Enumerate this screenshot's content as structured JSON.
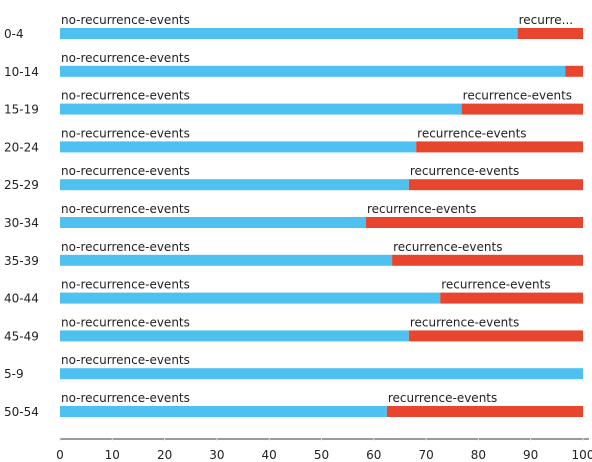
{
  "chart_data": {
    "type": "bar",
    "orientation": "horizontal",
    "stacked": true,
    "normalized": true,
    "categories": [
      "0-4",
      "10-14",
      "15-19",
      "20-24",
      "25-29",
      "30-34",
      "35-39",
      "40-44",
      "45-49",
      "5-9",
      "50-54"
    ],
    "series": [
      {
        "name": "no-recurrence-events",
        "color": "#4fc1f1",
        "values": [
          87.5,
          96.6,
          76.8,
          68.1,
          66.7,
          58.5,
          63.5,
          72.7,
          66.7,
          100,
          62.5
        ]
      },
      {
        "name": "recurrence-events",
        "color": "#e8452f",
        "values": [
          12.5,
          3.4,
          23.2,
          31.9,
          33.3,
          41.5,
          36.5,
          27.3,
          33.3,
          0,
          37.5
        ]
      }
    ],
    "segment_labels": [
      [
        "no-recurrence-events",
        "recurre..."
      ],
      [
        "no-recurrence-events",
        ""
      ],
      [
        "no-recurrence-events",
        "recurrence-events"
      ],
      [
        "no-recurrence-events",
        "recurrence-events"
      ],
      [
        "no-recurrence-events",
        "recurrence-events"
      ],
      [
        "no-recurrence-events",
        "recurrence-events"
      ],
      [
        "no-recurrence-events",
        "recurrence-events"
      ],
      [
        "no-recurrence-events",
        "recurrence-events"
      ],
      [
        "no-recurrence-events",
        "recurrence-events"
      ],
      [
        "no-recurrence-events",
        ""
      ],
      [
        "no-recurrence-events",
        "recurrence-events"
      ]
    ],
    "xlim": [
      0,
      100
    ],
    "xticks": [
      0,
      10,
      20,
      30,
      40,
      50,
      60,
      70,
      80,
      90,
      100
    ],
    "xtick_labels": [
      "0",
      "10",
      "20",
      "30",
      "40",
      "50",
      "60",
      "70",
      "80",
      "90",
      "100"
    ],
    "grid": false,
    "legend": "none"
  }
}
